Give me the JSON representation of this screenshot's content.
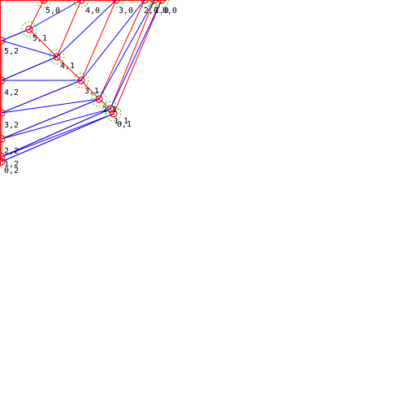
{
  "colors": {
    "background": "#ffffff",
    "red_edge": "#ff0000",
    "blue_edge": "#0000ff",
    "vertex_ring": "#ff0000",
    "highlight_ring": "#00cc00",
    "label": "#000000"
  },
  "vertices": [
    {
      "id": "5,0",
      "label": "5,0"
    },
    {
      "id": "4,0",
      "label": "4,0"
    },
    {
      "id": "3,0",
      "label": "3,0"
    },
    {
      "id": "2,0",
      "label": "2,0"
    },
    {
      "id": "1,0",
      "label": "1,0"
    },
    {
      "id": "0,0",
      "label": "0,0"
    },
    {
      "id": "5,1",
      "label": "5,1"
    },
    {
      "id": "4,1",
      "label": "4,1"
    },
    {
      "id": "3,1",
      "label": "3,1"
    },
    {
      "id": "2,1",
      "label": "2,1"
    },
    {
      "id": "1,1",
      "label": "1,1"
    },
    {
      "id": "0,1",
      "label": "0,1"
    },
    {
      "id": "5,2",
      "label": "5,2"
    },
    {
      "id": "4,2",
      "label": "4,2"
    },
    {
      "id": "3,2",
      "label": "3,2"
    },
    {
      "id": "2,2",
      "label": "2,2"
    },
    {
      "id": "1,2",
      "label": "1,2"
    },
    {
      "id": "0,2",
      "label": "0,2"
    }
  ],
  "red_edges": [
    [
      "5,0",
      "5,1"
    ],
    [
      "4,0",
      "4,1"
    ],
    [
      "3,0",
      "3,1"
    ],
    [
      "2,0",
      "2,1"
    ],
    [
      "1,0",
      "1,1"
    ],
    [
      "0,0",
      "0,1"
    ],
    [
      "5,0",
      "4,0"
    ],
    [
      "4,0",
      "3,0"
    ],
    [
      "3,0",
      "2,0"
    ],
    [
      "2,0",
      "1,0"
    ],
    [
      "1,0",
      "0,0"
    ],
    [
      "5,1",
      "4,1"
    ],
    [
      "4,1",
      "3,1"
    ],
    [
      "3,1",
      "2,1"
    ],
    [
      "2,1",
      "1,1"
    ],
    [
      "1,1",
      "0,1"
    ],
    [
      "5,1",
      "5,2"
    ],
    [
      "4,1",
      "4,2"
    ],
    [
      "3,1",
      "3,2"
    ],
    [
      "2,1",
      "2,2"
    ],
    [
      "1,1",
      "1,2"
    ],
    [
      "0,1",
      "0,2"
    ],
    [
      "5,2",
      "4,2"
    ],
    [
      "4,2",
      "3,2"
    ],
    [
      "3,2",
      "2,2"
    ],
    [
      "2,2",
      "1,2"
    ],
    [
      "1,2",
      "0,2"
    ]
  ],
  "blue_edges": [
    [
      "5,1",
      "4,0"
    ],
    [
      "4,1",
      "3,0"
    ],
    [
      "3,1",
      "2,0"
    ],
    [
      "2,1",
      "1,0"
    ],
    [
      "1,1",
      "0,0"
    ],
    [
      "5,2",
      "5,1"
    ],
    [
      "4,2",
      "4,1"
    ],
    [
      "3,2",
      "3,1"
    ],
    [
      "2,2",
      "2,1"
    ],
    [
      "1,2",
      "1,1"
    ],
    [
      "0,2",
      "0,1"
    ],
    [
      "5,2",
      "4,1"
    ],
    [
      "4,2",
      "3,1"
    ],
    [
      "3,2",
      "2,1"
    ],
    [
      "2,2",
      "1,1"
    ],
    [
      "1,2",
      "0,1"
    ]
  ],
  "highlighted": [
    "5,1",
    "4,1",
    "3,1",
    "2,1",
    "1,1",
    "0,1",
    "5,0",
    "4,0",
    "3,0",
    "2,0",
    "1,0",
    "0,0"
  ]
}
